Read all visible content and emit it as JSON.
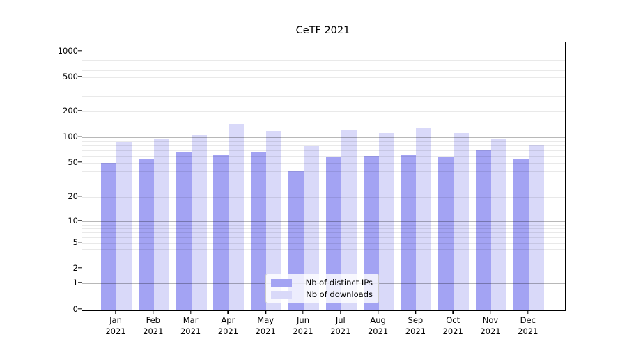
{
  "title": "CeTF 2021",
  "colors": {
    "distinct_ips_bar": "#a3a3f3",
    "downloads_bar": "#d9d9f9",
    "grid_major": "rgba(0,0,0,0.28)",
    "grid_minor": "rgba(0,0,0,0.085)",
    "axis": "#000000"
  },
  "legend": {
    "items": [
      {
        "label": "Nb of distinct IPs",
        "color": "#a3a3f3"
      },
      {
        "label": "Nb of downloads",
        "color": "#d9d9f9"
      }
    ]
  },
  "x_axis": {
    "months": [
      "Jan",
      "Feb",
      "Mar",
      "Apr",
      "May",
      "Jun",
      "Jul",
      "Aug",
      "Sep",
      "Oct",
      "Nov",
      "Dec"
    ],
    "year": "2021"
  },
  "y_axis": {
    "tick_labels": [
      "0",
      "1",
      "2",
      "5",
      "10",
      "20",
      "50",
      "100",
      "200",
      "500",
      "1000"
    ],
    "tick_values": [
      0,
      1,
      2,
      5,
      10,
      20,
      50,
      100,
      200,
      500,
      1000
    ]
  },
  "chart_data": {
    "type": "bar",
    "title": "CeTF 2021",
    "categories": [
      "Jan 2021",
      "Feb 2021",
      "Mar 2021",
      "Apr 2021",
      "May 2021",
      "Jun 2021",
      "Jul 2021",
      "Aug 2021",
      "Sep 2021",
      "Oct 2021",
      "Nov 2021",
      "Dec 2021"
    ],
    "series": [
      {
        "name": "Nb of distinct IPs",
        "color": "#a3a3f3",
        "values": [
          50,
          56,
          68,
          62,
          66,
          40,
          59,
          60,
          63,
          58,
          71,
          56
        ]
      },
      {
        "name": "Nb of downloads",
        "color": "#d9d9f9",
        "values": [
          88,
          96,
          105,
          144,
          119,
          78,
          120,
          112,
          127,
          112,
          95,
          80
        ]
      }
    ],
    "xlabel": "",
    "ylabel": "",
    "yscale": "symlog",
    "yticks": [
      0,
      1,
      2,
      5,
      10,
      20,
      50,
      100,
      200,
      500,
      1000
    ],
    "ylim": [
      0,
      1300
    ],
    "grid": true,
    "legend_position": "lower center"
  }
}
